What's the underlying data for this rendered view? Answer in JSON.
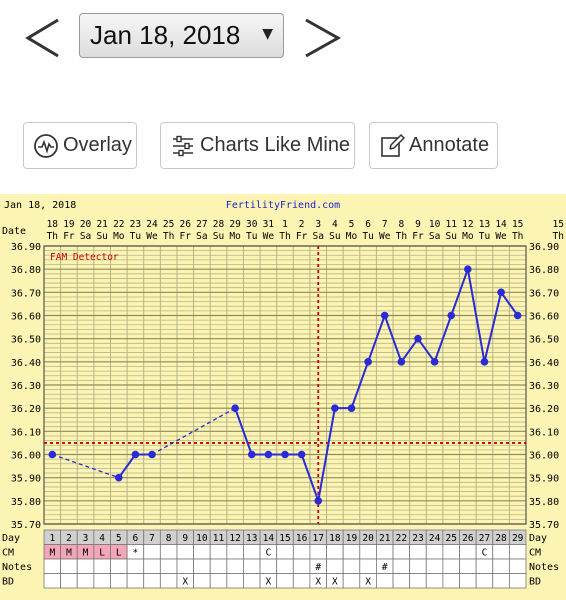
{
  "nav": {
    "prev_icon": "chevron-left-icon",
    "next_icon": "chevron-right-icon",
    "date_value": "Jan 18, 2018",
    "dropdown_caret": "▼"
  },
  "toolbar": {
    "overlay_label": "Overlay",
    "overlay_icon": "waveform-icon",
    "charts_like_mine_label": "Charts Like Mine",
    "charts_like_mine_icon": "sliders-icon",
    "annotate_label": "Annotate",
    "annotate_icon": "edit-icon"
  },
  "chart_data": {
    "type": "line",
    "header_date": "Jan 18, 2018",
    "header_site": "FertilityFriend.com",
    "detector_label": "FAM Detector",
    "row_labels": {
      "date": "Date",
      "day": "Day",
      "cm": "CM",
      "notes": "Notes",
      "bd": "BD"
    },
    "dates": [
      "18",
      "19",
      "20",
      "21",
      "22",
      "23",
      "24",
      "25",
      "26",
      "27",
      "28",
      "29",
      "30",
      "31",
      "1",
      "2",
      "3",
      "4",
      "5",
      "6",
      "7",
      "8",
      "9",
      "10",
      "11",
      "12",
      "13",
      "14",
      "15"
    ],
    "weekdays": [
      "Th",
      "Fr",
      "Sa",
      "Su",
      "Mo",
      "Tu",
      "We",
      "Th",
      "Fr",
      "Sa",
      "Su",
      "Mo",
      "Tu",
      "We",
      "Th",
      "Fr",
      "Sa",
      "Su",
      "Mo",
      "Tu",
      "We",
      "Th",
      "Fr",
      "Sa",
      "Su",
      "Mo",
      "Tu",
      "We",
      "Th"
    ],
    "days": [
      1,
      2,
      3,
      4,
      5,
      6,
      7,
      8,
      9,
      10,
      11,
      12,
      13,
      14,
      15,
      16,
      17,
      18,
      19,
      20,
      21,
      22,
      23,
      24,
      25,
      26,
      27,
      28,
      29
    ],
    "y_ticks": [
      "36.90",
      "36.80",
      "36.70",
      "36.60",
      "36.50",
      "36.40",
      "36.30",
      "36.20",
      "36.10",
      "36.00",
      "35.90",
      "35.80",
      "35.70"
    ],
    "ylim": [
      35.7,
      36.9
    ],
    "series": [
      {
        "x": [
          1,
          5,
          6,
          7,
          12,
          13,
          14,
          15,
          16,
          17,
          18,
          19,
          20,
          21,
          22,
          23,
          24,
          25,
          26,
          27,
          28,
          29
        ],
        "y": [
          36.0,
          35.9,
          36.0,
          36.0,
          36.2,
          36.0,
          36.0,
          36.0,
          36.0,
          35.8,
          36.2,
          36.2,
          36.4,
          36.6,
          36.4,
          36.5,
          36.4,
          36.6,
          36.8,
          36.4,
          36.7,
          36.6
        ]
      }
    ],
    "dashed_segments": [
      [
        1,
        5
      ],
      [
        7,
        12
      ]
    ],
    "coverline": 36.05,
    "ovulation_day": 17,
    "cm": {
      "1": "M",
      "2": "M",
      "3": "M",
      "4": "L",
      "5": "L",
      "6": "*",
      "14": "C",
      "27": "C"
    },
    "notes": {
      "17": "#",
      "21": "#"
    },
    "bd": {
      "9": "X",
      "14": "X",
      "17": "X",
      "18": "X",
      "20": "X"
    },
    "colors": {
      "background": "#fbf4b3",
      "grid": "#b9b489",
      "line": "#2a2ad6",
      "coverline": "#cc0000",
      "detector": "#cc0000",
      "site": "#2222cc",
      "day_cell": "#d0d0d0",
      "cm_pink": "#f3a6b8"
    }
  }
}
